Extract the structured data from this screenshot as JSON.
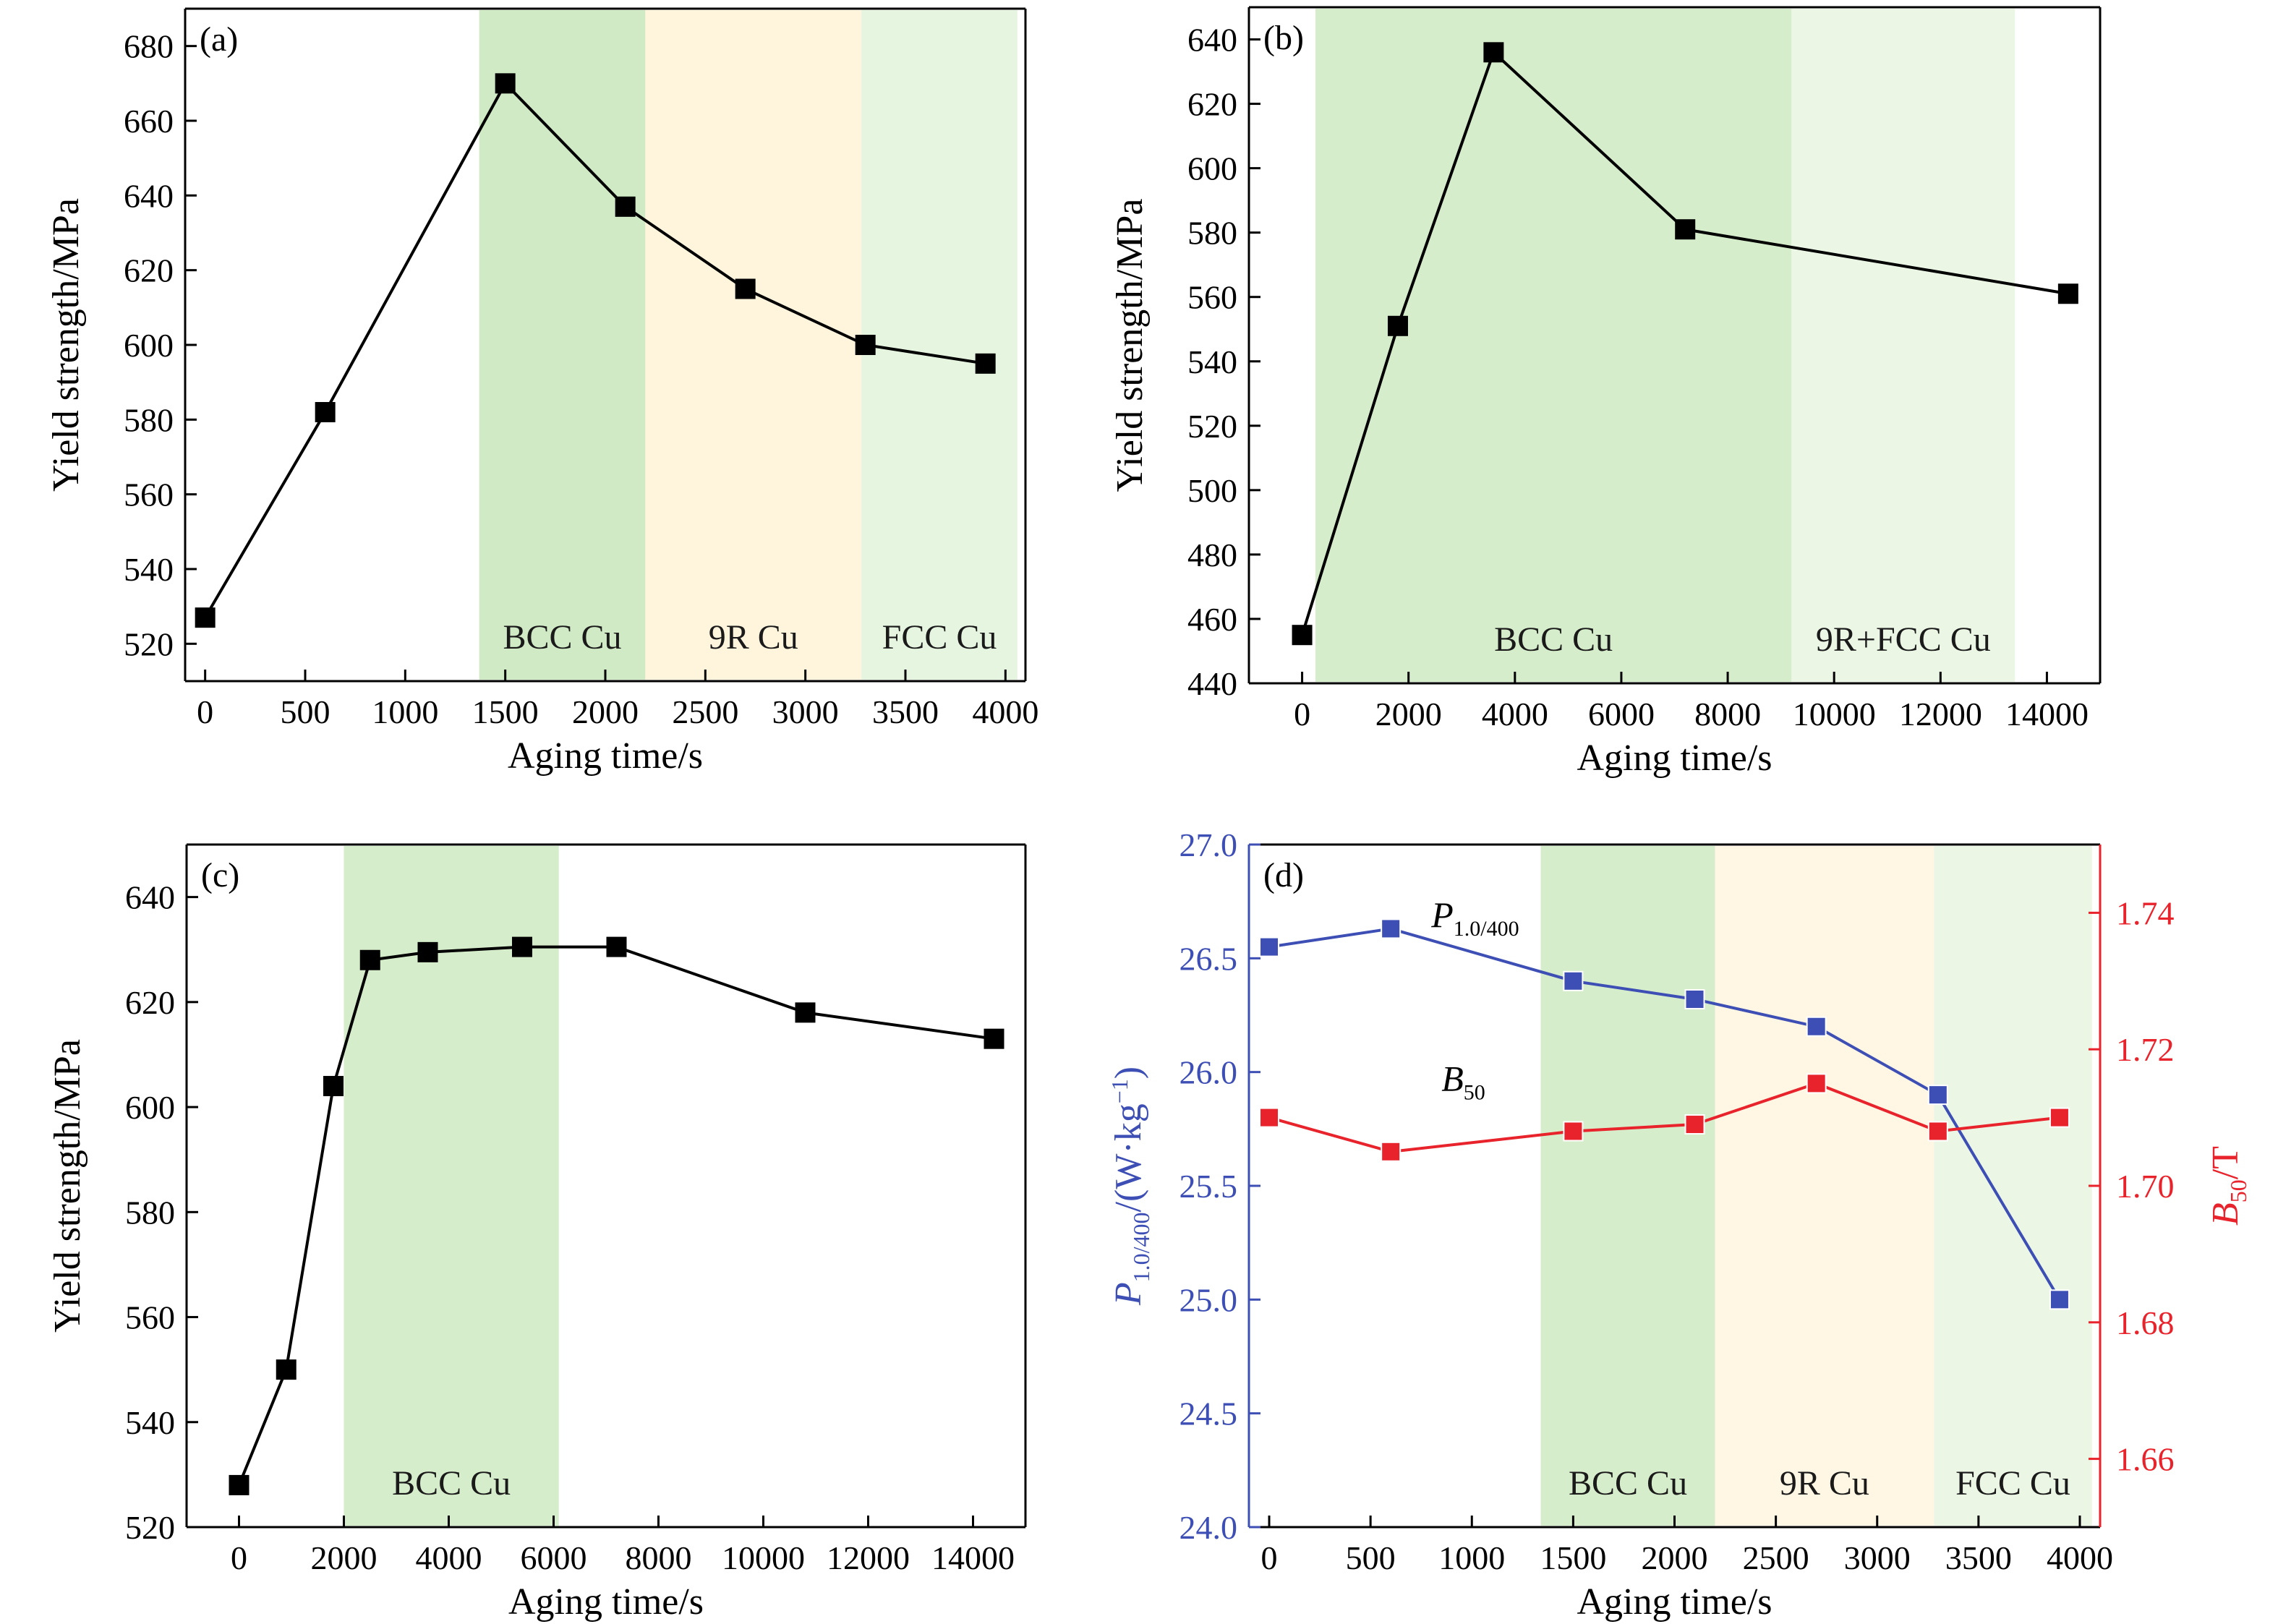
{
  "chart_data": [
    {
      "panel": "(a)",
      "type": "line",
      "xlabel": "Aging time/s",
      "ylabel": "Yield strength/MPa",
      "xlim": [
        -100,
        4100
      ],
      "ylim": [
        510,
        690
      ],
      "xticks": [
        0,
        500,
        1000,
        1500,
        2000,
        2500,
        3000,
        3500,
        4000
      ],
      "yticks": [
        520,
        540,
        560,
        580,
        600,
        620,
        640,
        660,
        680
      ],
      "x": [
        0,
        600,
        1500,
        2100,
        2700,
        3300,
        3900
      ],
      "series": [
        {
          "values": [
            527,
            582,
            670,
            637,
            615,
            600,
            595
          ],
          "color": "#000000"
        }
      ],
      "regions": [
        {
          "label": "BCC Cu",
          "x0": 1370,
          "x1": 2200,
          "color": "#cfeac4"
        },
        {
          "label": "9R Cu",
          "x0": 2200,
          "x1": 3280,
          "color": "#fff4dc"
        },
        {
          "label": "FCC Cu",
          "x0": 3280,
          "x1": 4060,
          "color": "#e6f5e0"
        }
      ]
    },
    {
      "panel": "(b)",
      "type": "line",
      "xlabel": "Aging time/s",
      "ylabel": "Yield strength/MPa",
      "xlim": [
        -1000,
        15000
      ],
      "ylim": [
        440,
        650
      ],
      "xticks": [
        0,
        2000,
        4000,
        6000,
        8000,
        10000,
        12000,
        14000
      ],
      "yticks": [
        440,
        460,
        480,
        500,
        520,
        540,
        560,
        580,
        600,
        620,
        640
      ],
      "x": [
        0,
        1800,
        3600,
        7200,
        14400
      ],
      "series": [
        {
          "values": [
            455,
            551,
            636,
            581,
            561
          ],
          "color": "#000000"
        }
      ],
      "regions": [
        {
          "label": "BCC Cu",
          "x0": 250,
          "x1": 9200,
          "color": "#d6edcb"
        },
        {
          "label": "9R+FCC Cu",
          "x0": 9200,
          "x1": 13400,
          "color": "#ebf6e5"
        }
      ]
    },
    {
      "panel": "(c)",
      "type": "line",
      "xlabel": "Aging time/s",
      "ylabel": "Yield strength/MPa",
      "xlim": [
        -1000,
        15000
      ],
      "ylim": [
        520,
        650
      ],
      "xticks": [
        0,
        2000,
        4000,
        6000,
        8000,
        10000,
        12000,
        14000
      ],
      "yticks": [
        520,
        540,
        560,
        580,
        600,
        620,
        640
      ],
      "x": [
        0,
        900,
        1800,
        2500,
        3600,
        5400,
        7200,
        10800,
        14400
      ],
      "series": [
        {
          "values": [
            528,
            550,
            604,
            628,
            629.5,
            630.5,
            630.5,
            618,
            613
          ],
          "color": "#000000"
        }
      ],
      "regions": [
        {
          "label": "BCC Cu",
          "x0": 2000,
          "x1": 6100,
          "color": "#d6edcb"
        }
      ]
    },
    {
      "panel": "(d)",
      "type": "line",
      "xlabel": "Aging time/s",
      "ylabel_left": {
        "main": "P",
        "sub": "1.0/400",
        "rest": "/(W·kg",
        "sup": "−1",
        "end": ")"
      },
      "ylabel_right": {
        "main": "B",
        "sub": "50",
        "rest": "/T"
      },
      "xlim": [
        -100,
        4100
      ],
      "ylim_left": [
        24.0,
        27.0
      ],
      "ylim_right": [
        1.65,
        1.75
      ],
      "xticks": [
        0,
        500,
        1000,
        1500,
        2000,
        2500,
        3000,
        3500,
        4000
      ],
      "yticks_left": [
        "24.0",
        "24.5",
        "25.0",
        "25.5",
        "26.0",
        "26.5",
        "27.0"
      ],
      "yticks_right": [
        "1.66",
        "1.68",
        "1.70",
        "1.72",
        "1.74"
      ],
      "x": [
        0,
        600,
        1500,
        2100,
        2700,
        3300,
        3900
      ],
      "series": [
        {
          "name_main": "P",
          "name_sub": "1.0/400",
          "axis": "left",
          "color": "#3d4fb5",
          "values": [
            26.55,
            26.63,
            26.4,
            26.32,
            26.2,
            25.9,
            25.0
          ]
        },
        {
          "name_main": "B",
          "name_sub": "50",
          "axis": "right",
          "color": "#e8232b",
          "values": [
            1.71,
            1.705,
            1.708,
            1.709,
            1.715,
            1.708,
            1.71
          ]
        }
      ],
      "regions": [
        {
          "label": "BCC Cu",
          "x0": 1340,
          "x1": 2200,
          "color": "#d6edcb"
        },
        {
          "label": "9R Cu",
          "x0": 2200,
          "x1": 3280,
          "color": "#fff6e3"
        },
        {
          "label": "FCC Cu",
          "x0": 3280,
          "x1": 4060,
          "color": "#ebf6e5"
        }
      ]
    }
  ],
  "colors": {
    "axis": "#000000",
    "left_axis_d": "#3d4fb5",
    "right_axis_d": "#e8232b"
  }
}
